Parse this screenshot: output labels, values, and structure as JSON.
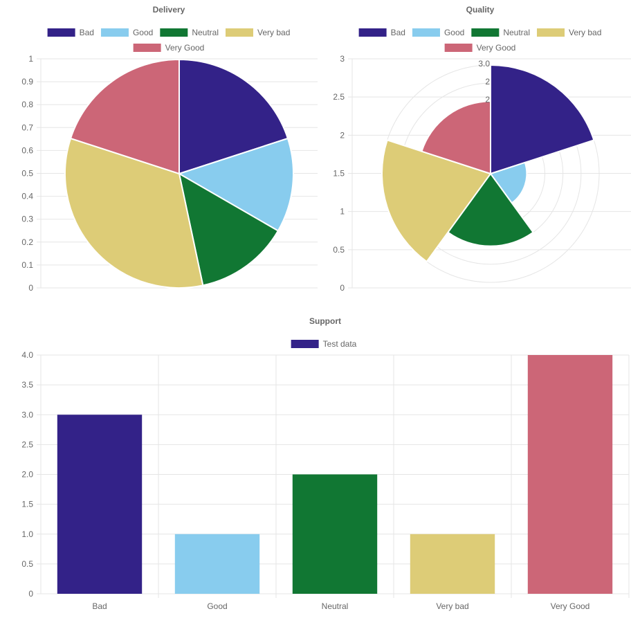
{
  "chart_data": [
    {
      "id": "delivery",
      "type": "pie",
      "title": "Delivery",
      "categories": [
        "Bad",
        "Good",
        "Neutral",
        "Very bad",
        "Very Good"
      ],
      "values": [
        3,
        2,
        2,
        5,
        3
      ],
      "colors": [
        "#332288",
        "#88ccee",
        "#117733",
        "#ddcc77",
        "#cc6677"
      ],
      "ylim": [
        0,
        1
      ],
      "yticks": [
        "1",
        "0.9",
        "0.8",
        "0.7",
        "0.6",
        "0.5",
        "0.4",
        "0.3",
        "0.2",
        "0.1",
        "0"
      ],
      "legend": "top",
      "grid": true
    },
    {
      "id": "quality",
      "type": "polarArea",
      "title": "Quality",
      "categories": [
        "Bad",
        "Good",
        "Neutral",
        "Very bad",
        "Very Good"
      ],
      "values": [
        3,
        1,
        2,
        3,
        2
      ],
      "colors": [
        "#332288",
        "#88ccee",
        "#117733",
        "#ddcc77",
        "#cc6677"
      ],
      "ylim": [
        0,
        3
      ],
      "yticks": [
        "3",
        "2.5",
        "2",
        "1.5",
        "1",
        "0.5",
        "0"
      ],
      "rtick_labels": [
        "3.0",
        "2",
        "2"
      ],
      "legend": "top",
      "grid": true
    },
    {
      "id": "support",
      "type": "bar",
      "title": "Support",
      "categories": [
        "Bad",
        "Good",
        "Neutral",
        "Very bad",
        "Very Good"
      ],
      "series": [
        {
          "name": "Test data",
          "values": [
            3,
            1,
            2,
            1,
            4
          ]
        }
      ],
      "colors": [
        "#332288",
        "#88ccee",
        "#117733",
        "#ddcc77",
        "#cc6677"
      ],
      "ylim": [
        0,
        4
      ],
      "yticks": [
        "4.0",
        "3.5",
        "3.0",
        "2.5",
        "2.0",
        "1.5",
        "1.0",
        "0.5",
        "0"
      ],
      "legend": "top",
      "grid": true
    }
  ]
}
